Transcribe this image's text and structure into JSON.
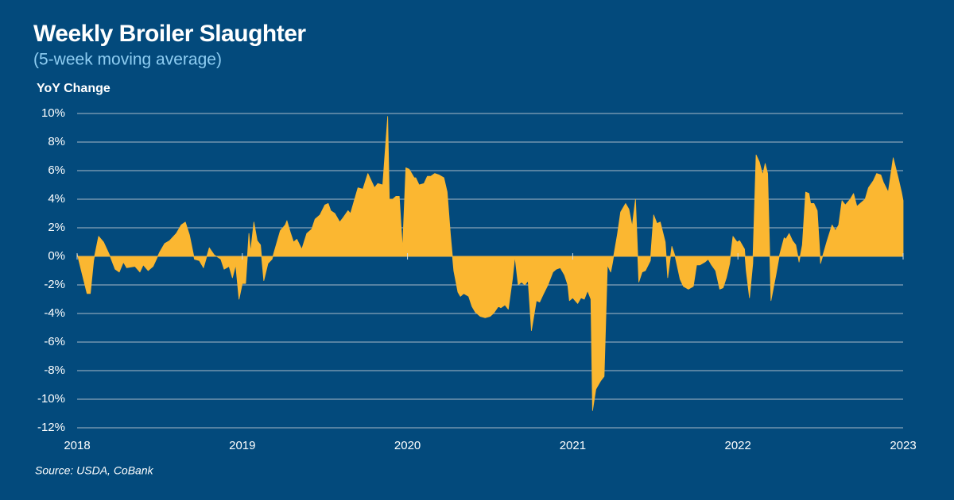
{
  "chart_data": {
    "type": "area",
    "title": "Weekly Broiler Slaughter",
    "subtitle": "(5-week moving average)",
    "y_label": "YoY Change",
    "source": "Source: USDA, CoBank",
    "color": "#fbb731",
    "grid": true,
    "xlim": [
      2018,
      2023
    ],
    "xticks": [
      2018,
      2019,
      2020,
      2021,
      2022,
      2023
    ],
    "ylim": [
      -12,
      10
    ],
    "yticks": [
      {
        "value": 10,
        "label": "10%"
      },
      {
        "value": 8,
        "label": "8%"
      },
      {
        "value": 6,
        "label": "6%"
      },
      {
        "value": 4,
        "label": "4%"
      },
      {
        "value": 2,
        "label": "2%"
      },
      {
        "value": 0,
        "label": "0%"
      },
      {
        "value": -2,
        "label": "-2%"
      },
      {
        "value": -4,
        "label": "-4%"
      },
      {
        "value": -6,
        "label": "-6%"
      },
      {
        "value": -8,
        "label": "-8%"
      },
      {
        "value": -10,
        "label": "-10%"
      },
      {
        "value": -12,
        "label": "-12%"
      }
    ],
    "x": [
      2018.0,
      2018.03,
      2018.06,
      2018.08,
      2018.1,
      2018.13,
      2018.16,
      2018.2,
      2018.23,
      2018.255,
      2018.28,
      2018.3,
      2018.35,
      2018.38,
      2018.4,
      2018.43,
      2018.46,
      2018.5,
      2018.53,
      2018.56,
      2018.6,
      2018.63,
      2018.655,
      2018.68,
      2018.71,
      2018.74,
      2018.765,
      2018.8,
      2018.83,
      2018.87,
      2018.89,
      2018.92,
      2018.94,
      2018.96,
      2018.98,
      2019.0,
      2019.02,
      2019.04,
      2019.05,
      2019.07,
      2019.09,
      2019.11,
      2019.13,
      2019.155,
      2019.18,
      2019.21,
      2019.23,
      2019.26,
      2019.27,
      2019.29,
      2019.31,
      2019.33,
      2019.36,
      2019.39,
      2019.42,
      2019.44,
      2019.47,
      2019.5,
      2019.52,
      2019.535,
      2019.56,
      2019.59,
      2019.61,
      2019.64,
      2019.655,
      2019.68,
      2019.7,
      2019.73,
      2019.76,
      2019.78,
      2019.8,
      2019.82,
      2019.85,
      2019.88,
      2019.89,
      2019.91,
      2019.93,
      2019.95,
      2019.97,
      2019.99,
      2020.01,
      2020.04,
      2020.05,
      2020.07,
      2020.1,
      2020.12,
      2020.14,
      2020.165,
      2020.19,
      2020.22,
      2020.24,
      2020.26,
      2020.28,
      2020.305,
      2020.32,
      2020.34,
      2020.37,
      2020.39,
      2020.41,
      2020.44,
      2020.47,
      2020.5,
      2020.52,
      2020.55,
      2020.565,
      2020.59,
      2020.61,
      2020.635,
      2020.65,
      2020.67,
      2020.69,
      2020.71,
      2020.73,
      2020.75,
      2020.78,
      2020.8,
      2020.82,
      2020.85,
      2020.88,
      2020.9,
      2020.925,
      2020.95,
      2020.97,
      2020.98,
      2021.0,
      2021.03,
      2021.05,
      2021.07,
      2021.09,
      2021.11,
      2021.12,
      2021.14,
      2021.17,
      2021.19,
      2021.21,
      2021.23,
      2021.24,
      2021.27,
      2021.29,
      2021.32,
      2021.34,
      2021.36,
      2021.38,
      2021.4,
      2021.42,
      2021.44,
      2021.47,
      2021.49,
      2021.51,
      2021.53,
      2021.56,
      2021.575,
      2021.6,
      2021.62,
      2021.65,
      2021.67,
      2021.7,
      2021.73,
      2021.75,
      2021.77,
      2021.8,
      2021.82,
      2021.84,
      2021.865,
      2021.89,
      2021.91,
      2021.93,
      2021.95,
      2021.97,
      2021.995,
      2022.01,
      2022.04,
      2022.05,
      2022.07,
      2022.09,
      2022.11,
      2022.13,
      2022.15,
      2022.165,
      2022.18,
      2022.2,
      2022.23,
      2022.25,
      2022.28,
      2022.29,
      2022.31,
      2022.33,
      2022.35,
      2022.37,
      2022.39,
      2022.41,
      2022.43,
      2022.44,
      2022.46,
      2022.48,
      2022.5,
      2022.52,
      2022.54,
      2022.57,
      2022.59,
      2022.61,
      2022.63,
      2022.65,
      2022.68,
      2022.7,
      2022.72,
      2022.74,
      2022.77,
      2022.79,
      2022.82,
      2022.84,
      2022.865,
      2022.88,
      2022.91,
      2022.94,
      2022.97,
      2022.99,
      2023.0
    ],
    "values": [
      0.2,
      -1.2,
      -2.6,
      -2.6,
      -0.3,
      1.4,
      1.0,
      0.0,
      -0.9,
      -1.1,
      -0.4,
      -0.8,
      -0.7,
      -1.1,
      -0.6,
      -1.0,
      -0.7,
      0.3,
      0.9,
      1.1,
      1.6,
      2.2,
      2.4,
      1.5,
      -0.2,
      -0.3,
      -0.8,
      0.6,
      0.1,
      -0.2,
      -0.9,
      -0.7,
      -1.5,
      -0.6,
      -3.0,
      -1.9,
      -1.9,
      1.6,
      0.3,
      2.4,
      1.1,
      0.8,
      -1.7,
      -0.5,
      -0.2,
      1.0,
      1.8,
      2.2,
      2.5,
      1.7,
      1.0,
      1.2,
      0.5,
      1.6,
      1.9,
      2.6,
      2.9,
      3.6,
      3.7,
      3.2,
      3.0,
      2.4,
      2.7,
      3.2,
      3.0,
      4.0,
      4.8,
      4.7,
      5.8,
      5.3,
      4.8,
      5.1,
      5.0,
      9.8,
      4.0,
      4.0,
      4.2,
      4.2,
      0.5,
      6.2,
      6.1,
      5.5,
      5.5,
      5.0,
      5.1,
      5.6,
      5.6,
      5.8,
      5.7,
      5.5,
      4.5,
      1.5,
      -1.0,
      -2.5,
      -2.8,
      -2.6,
      -2.8,
      -3.5,
      -3.9,
      -4.2,
      -4.3,
      -4.2,
      -4.0,
      -3.5,
      -3.6,
      -3.4,
      -3.7,
      -1.6,
      0.0,
      -2.0,
      -1.8,
      -2.0,
      -1.7,
      -5.2,
      -3.1,
      -3.2,
      -2.7,
      -2.0,
      -1.1,
      -0.9,
      -0.8,
      -1.3,
      -2.0,
      -3.1,
      -2.9,
      -3.3,
      -2.9,
      -3.0,
      -2.4,
      -3.0,
      -10.8,
      -9.3,
      -8.7,
      -8.4,
      -0.6,
      -1.1,
      -0.5,
      1.5,
      3.1,
      3.7,
      3.3,
      2.1,
      4.0,
      -1.8,
      -1.1,
      -1.0,
      -0.3,
      2.9,
      2.3,
      2.4,
      1.0,
      -1.5,
      0.7,
      0.0,
      -1.6,
      -2.1,
      -2.3,
      -2.1,
      -0.6,
      -0.6,
      -0.4,
      -0.2,
      -0.6,
      -1.0,
      -2.3,
      -2.2,
      -1.5,
      -0.5,
      1.4,
      1.0,
      1.1,
      0.5,
      -1.0,
      -2.9,
      -0.5,
      7.1,
      6.6,
      5.7,
      6.5,
      5.8,
      -3.1,
      -1.3,
      0.0,
      1.3,
      1.2,
      1.6,
      1.1,
      0.8,
      -0.4,
      0.8,
      4.5,
      4.4,
      3.7,
      3.7,
      3.2,
      -0.5,
      0.3,
      1.1,
      2.2,
      1.8,
      2.2,
      3.9,
      3.6,
      4.0,
      4.4,
      3.5,
      3.7,
      4.0,
      4.8,
      5.3,
      5.8,
      5.7,
      5.2,
      4.5,
      6.9,
      5.5,
      4.5,
      3.9
    ]
  }
}
